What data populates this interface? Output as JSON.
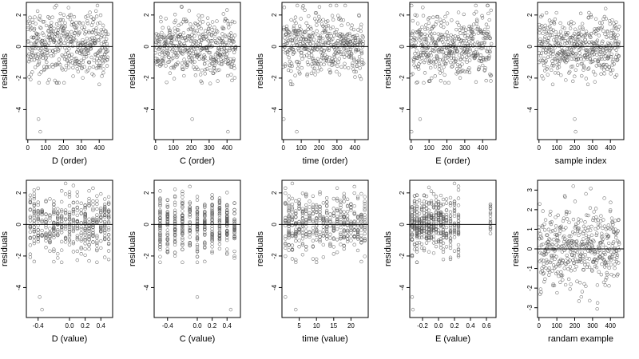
{
  "figure": {
    "title": ""
  },
  "chart_data": [
    {
      "type": "scatter",
      "xlabel": "D (order)",
      "ylabel": "residuals",
      "xlim": [
        -8,
        475
      ],
      "ylim": [
        -5.9,
        2.8
      ],
      "xticks": [
        "0",
        "100",
        "200",
        "300",
        "400"
      ],
      "xtick_values": [
        0,
        100,
        200,
        300,
        400
      ],
      "yticks": [
        "-4",
        "-2",
        "0",
        "2"
      ],
      "ytick_values": [
        -4,
        -2,
        0,
        2
      ],
      "hline": 0,
      "points": {
        "x_kind": "index",
        "n": 450,
        "pattern": "cluster",
        "outliers": [
          [
            60,
            -4.6
          ],
          [
            70,
            -5.4
          ],
          [
            120,
            -2.1
          ],
          [
            400,
            -2.4
          ]
        ]
      }
    },
    {
      "type": "scatter",
      "xlabel": "C (order)",
      "ylabel": "residuals",
      "xlim": [
        -8,
        475
      ],
      "ylim": [
        -5.9,
        2.8
      ],
      "xticks": [
        "0",
        "100",
        "200",
        "300",
        "400"
      ],
      "xtick_values": [
        0,
        100,
        200,
        300,
        400
      ],
      "yticks": [
        "-4",
        "-2",
        "0",
        "2"
      ],
      "ytick_values": [
        -4,
        -2,
        0,
        2
      ],
      "hline": 0,
      "points": {
        "x_kind": "index",
        "n": 450,
        "pattern": "uniform",
        "outliers": [
          [
            205,
            -4.6
          ],
          [
            405,
            -5.4
          ],
          [
            260,
            -2.3
          ]
        ]
      }
    },
    {
      "type": "scatter",
      "xlabel": "time (order)",
      "ylabel": "residuals",
      "xlim": [
        -8,
        475
      ],
      "ylim": [
        -5.9,
        2.8
      ],
      "xticks": [
        "0",
        "100",
        "200",
        "300",
        "400"
      ],
      "xtick_values": [
        0,
        100,
        200,
        300,
        400
      ],
      "yticks": [
        "-4",
        "-2",
        "0",
        "2"
      ],
      "ytick_values": [
        -4,
        -2,
        0,
        2
      ],
      "hline": 0,
      "points": {
        "x_kind": "index",
        "n": 450,
        "pattern": "uniform",
        "outliers": [
          [
            2,
            -4.6
          ],
          [
            75,
            -5.4
          ],
          [
            40,
            -2.2
          ]
        ]
      }
    },
    {
      "type": "scatter",
      "xlabel": "E (order)",
      "ylabel": "residuals",
      "xlim": [
        -8,
        475
      ],
      "ylim": [
        -5.9,
        2.8
      ],
      "xticks": [
        "0",
        "100",
        "200",
        "300",
        "400"
      ],
      "xtick_values": [
        0,
        100,
        200,
        300,
        400
      ],
      "yticks": [
        "-4",
        "-2",
        "0",
        "2"
      ],
      "ytick_values": [
        -4,
        -2,
        0,
        2
      ],
      "hline": 0,
      "points": {
        "x_kind": "index",
        "n": 450,
        "pattern": "cluster",
        "outliers": [
          [
            50,
            -4.6
          ],
          [
            2,
            -5.4
          ],
          [
            100,
            -2.2
          ]
        ]
      }
    },
    {
      "type": "scatter",
      "xlabel": "sample index",
      "ylabel": "residuals",
      "xlim": [
        -8,
        475
      ],
      "ylim": [
        -5.9,
        2.8
      ],
      "xticks": [
        "0",
        "100",
        "200",
        "300",
        "400"
      ],
      "xtick_values": [
        0,
        100,
        200,
        300,
        400
      ],
      "yticks": [
        "-4",
        "-2",
        "0",
        "2"
      ],
      "ytick_values": [
        -4,
        -2,
        0,
        2
      ],
      "hline": 0,
      "points": {
        "x_kind": "index",
        "n": 450,
        "pattern": "uniform",
        "outliers": [
          [
            200,
            -4.6
          ],
          [
            205,
            -5.4
          ],
          [
            190,
            -2.2
          ]
        ]
      }
    },
    {
      "type": "scatter",
      "xlabel": "D (value)",
      "ylabel": "residuals",
      "xlim": [
        -0.55,
        0.55
      ],
      "ylim": [
        -5.9,
        2.8
      ],
      "xticks": [
        "-0.4",
        "0.0",
        "0.2",
        "0.4"
      ],
      "xtick_values": [
        -0.4,
        0.0,
        0.2,
        0.4
      ],
      "yticks": [
        "-4",
        "-2",
        "0",
        "2"
      ],
      "ytick_values": [
        -4,
        -2,
        0,
        2
      ],
      "hline": 0,
      "points": {
        "x_kind": "levels",
        "levels": [
          -0.5,
          -0.45,
          -0.4,
          -0.35,
          -0.3,
          -0.25,
          -0.2,
          -0.15,
          -0.1,
          -0.05,
          0.0,
          0.05,
          0.1,
          0.15,
          0.2,
          0.25,
          0.3,
          0.35,
          0.4,
          0.45,
          0.5
        ],
        "n": 450,
        "outliers": [
          [
            -0.38,
            -4.6
          ],
          [
            -0.35,
            -5.4
          ]
        ]
      }
    },
    {
      "type": "scatter",
      "xlabel": "C (value)",
      "ylabel": "residuals",
      "xlim": [
        -0.58,
        0.58
      ],
      "ylim": [
        -5.9,
        2.8
      ],
      "xticks": [
        "-0.4",
        "0.0",
        "0.2",
        "0.4"
      ],
      "xtick_values": [
        -0.4,
        0.0,
        0.2,
        0.4
      ],
      "yticks": [
        "-4",
        "-2",
        "0",
        "2"
      ],
      "ytick_values": [
        -4,
        -2,
        0,
        2
      ],
      "hline": 0,
      "points": {
        "x_kind": "levels",
        "levels": [
          -0.5,
          -0.4,
          -0.3,
          -0.2,
          -0.1,
          0.0,
          0.1,
          0.2,
          0.3,
          0.4,
          0.5
        ],
        "n": 450,
        "outliers": [
          [
            0.0,
            -4.6
          ],
          [
            0.45,
            -5.4
          ]
        ]
      }
    },
    {
      "type": "scatter",
      "xlabel": "time (value)",
      "ylabel": "residuals",
      "xlim": [
        0,
        25
      ],
      "ylim": [
        -5.9,
        2.8
      ],
      "xticks": [
        "5",
        "10",
        "15",
        "20"
      ],
      "xtick_values": [
        5,
        10,
        15,
        20
      ],
      "yticks": [
        "-4",
        "-2",
        "0",
        "2"
      ],
      "ytick_values": [
        -4,
        -2,
        0,
        2
      ],
      "hline": 0,
      "points": {
        "x_kind": "levels",
        "levels": [
          1,
          2,
          3,
          4,
          5,
          6,
          7,
          8,
          9,
          10,
          11,
          12,
          13,
          14,
          15,
          16,
          17,
          18,
          19,
          20,
          21,
          22,
          23,
          24
        ],
        "n": 450,
        "outliers": [
          [
            1,
            -4.6
          ],
          [
            4,
            -5.4
          ]
        ]
      }
    },
    {
      "type": "scatter",
      "xlabel": "E (value)",
      "ylabel": "residuals",
      "xlim": [
        -0.36,
        0.72
      ],
      "ylim": [
        -5.9,
        2.8
      ],
      "xticks": [
        "-0.2",
        "0.0",
        "0.2",
        "0.4",
        "0.6"
      ],
      "xtick_values": [
        -0.2,
        0.0,
        0.2,
        0.4,
        0.6
      ],
      "yticks": [
        "-4",
        "-2",
        "0",
        "2"
      ],
      "ytick_values": [
        -4,
        -2,
        0,
        2
      ],
      "hline": 0,
      "points": {
        "x_kind": "levels",
        "levels": [
          -0.33,
          -0.3,
          -0.27,
          -0.24,
          -0.21,
          -0.18,
          -0.15,
          -0.12,
          -0.09,
          -0.06,
          -0.03,
          0.0,
          0.03,
          0.06,
          0.1,
          0.15,
          0.2,
          0.25,
          0.65
        ],
        "n": 450,
        "outliers": [
          [
            -0.33,
            -4.6
          ],
          [
            -0.32,
            -5.4
          ]
        ]
      }
    },
    {
      "type": "scatter",
      "xlabel": "randam example",
      "ylabel": "residuals",
      "xlim": [
        -8,
        475
      ],
      "ylim": [
        -3.5,
        3.5
      ],
      "xticks": [
        "0",
        "100",
        "200",
        "300",
        "400"
      ],
      "xtick_values": [
        0,
        100,
        200,
        300,
        400
      ],
      "yticks": [
        "-3",
        "-2",
        "-1",
        "0",
        "1",
        "2",
        "3"
      ],
      "ytick_values": [
        -3,
        -2,
        -1,
        0,
        1,
        2,
        3
      ],
      "hline": 0,
      "points": {
        "x_kind": "index",
        "n": 450,
        "pattern": "normal",
        "outliers": []
      }
    }
  ]
}
